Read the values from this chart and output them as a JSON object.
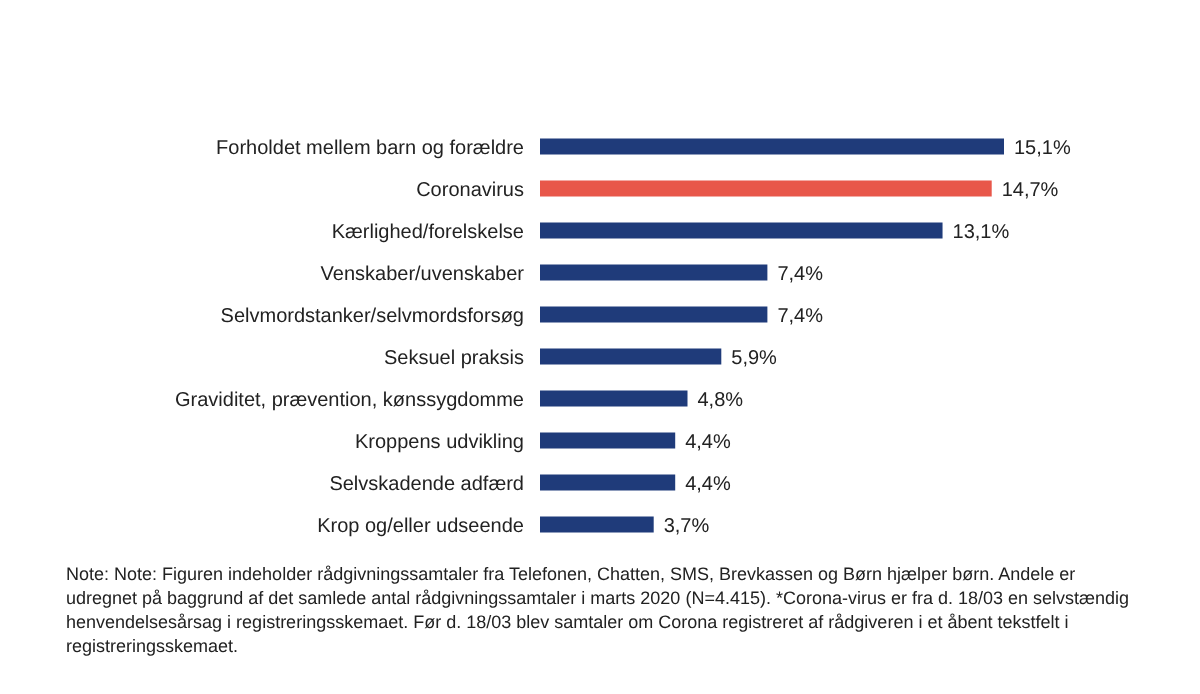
{
  "chart_data": {
    "type": "bar",
    "orientation": "horizontal",
    "categories": [
      "Forholdet mellem barn og forældre",
      "Coronavirus",
      "Kærlighed/forelskelse",
      "Venskaber/uvenskaber",
      "Selvmordstanker/selvmordsforsøg",
      "Seksuel praksis",
      "Graviditet, prævention, kønssygdomme",
      "Kroppens udvikling",
      "Selvskadende adfærd",
      "Krop og/eller udseende"
    ],
    "values": [
      15.1,
      14.7,
      13.1,
      7.4,
      7.4,
      5.9,
      4.8,
      4.4,
      4.4,
      3.7
    ],
    "value_labels": [
      "15,1%",
      "14,7%",
      "13,1%",
      "7,4%",
      "7,4%",
      "5,9%",
      "4,8%",
      "4,4%",
      "4,4%",
      "3,7%"
    ],
    "colors": [
      "#1f3b7a",
      "#e8574a",
      "#1f3b7a",
      "#1f3b7a",
      "#1f3b7a",
      "#1f3b7a",
      "#1f3b7a",
      "#1f3b7a",
      "#1f3b7a",
      "#1f3b7a"
    ],
    "annotations": [
      "Note: Note: Figuren indeholder rådgivningssamtaler fra Telefonen, Chatten, SMS, Brevkassen og Børn hjælper børn. Andele er udregnet på baggrund af det samlede antal rådgivningssamtaler i marts 2020 (N=4.415). *Corona-virus er fra d. 18/03 en selvstændig henvendelsesårsag i registreringsskemaet. Før d. 18/03 blev samtaler om Corona registreret af rådgiveren i et åbent tekstfelt i registreringsskemaet."
    ]
  }
}
